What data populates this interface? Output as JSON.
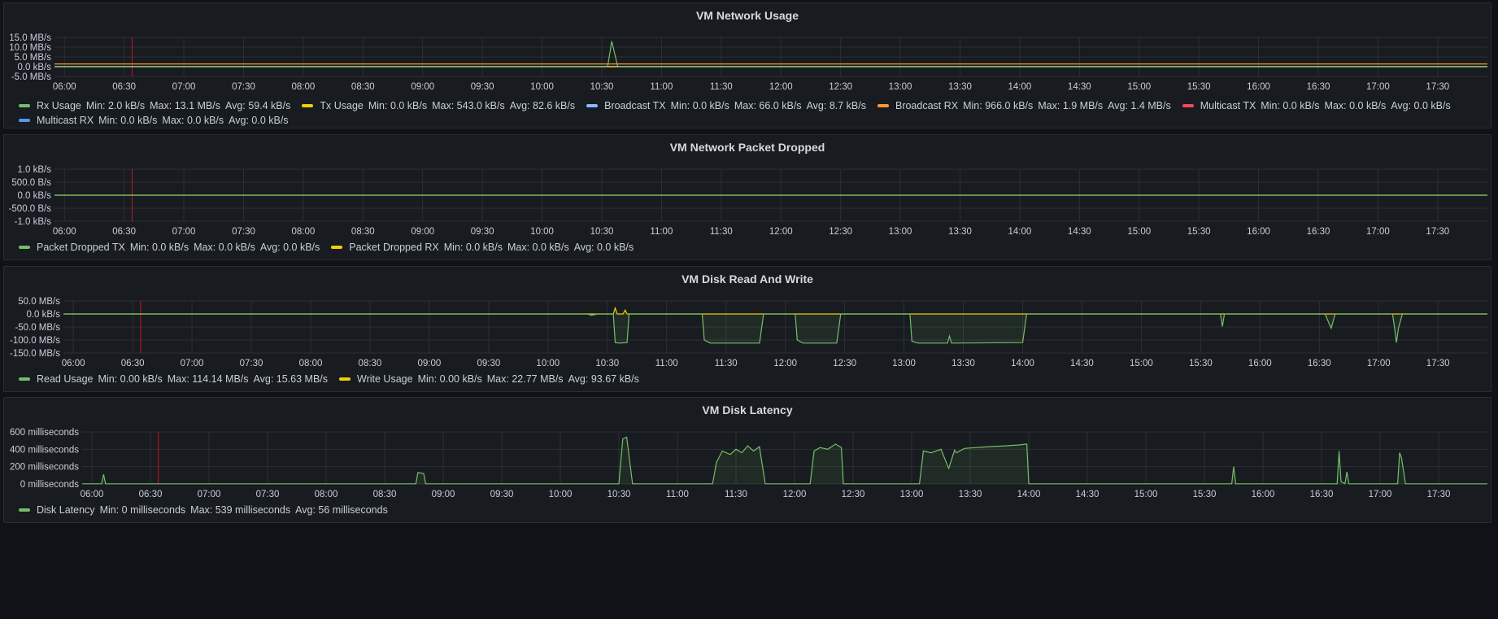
{
  "panels": [
    {
      "title": "VM Network Usage",
      "y_ticks": [
        "15.0 MB/s",
        "10.0 MB/s",
        "5.0 MB/s",
        "0.0 kB/s",
        "-5.0 MB/s"
      ],
      "x_ticks": [
        "06:00",
        "06:30",
        "07:00",
        "07:30",
        "08:00",
        "08:30",
        "09:00",
        "09:30",
        "10:00",
        "10:30",
        "11:00",
        "11:30",
        "12:00",
        "12:30",
        "13:00",
        "13:30",
        "14:00",
        "14:30",
        "15:00",
        "15:30",
        "16:00",
        "16:30",
        "17:00",
        "17:30"
      ],
      "legend": [
        {
          "name": "Rx Usage",
          "color": "#73bf69",
          "min": "Min: 2.0 kB/s",
          "max": "Max: 13.1 MB/s",
          "avg": "Avg: 59.4 kB/s"
        },
        {
          "name": "Tx Usage",
          "color": "#f2cc0c",
          "min": "Min: 0.0 kB/s",
          "max": "Max: 543.0 kB/s",
          "avg": "Avg: 82.6 kB/s"
        },
        {
          "name": "Broadcast TX",
          "color": "#8ab8ff",
          "min": "Min: 0.0 kB/s",
          "max": "Max: 66.0 kB/s",
          "avg": "Avg: 8.7 kB/s"
        },
        {
          "name": "Broadcast RX",
          "color": "#ff9830",
          "min": "Min: 966.0 kB/s",
          "max": "Max: 1.9 MB/s",
          "avg": "Avg: 1.4 MB/s"
        },
        {
          "name": "Multicast TX",
          "color": "#f2495c",
          "min": "Min: 0.0 kB/s",
          "max": "Max: 0.0 kB/s",
          "avg": "Avg: 0.0 kB/s"
        },
        {
          "name": "Multicast RX",
          "color": "#5794f2",
          "min": "Min: 0.0 kB/s",
          "max": "Max: 0.0 kB/s",
          "avg": "Avg: 0.0 kB/s"
        }
      ]
    },
    {
      "title": "VM Network Packet Dropped",
      "y_ticks": [
        "1.0 kB/s",
        "500.0 B/s",
        "0.0 kB/s",
        "-500.0 B/s",
        "-1.0 kB/s"
      ],
      "x_ticks": [
        "06:00",
        "06:30",
        "07:00",
        "07:30",
        "08:00",
        "08:30",
        "09:00",
        "09:30",
        "10:00",
        "10:30",
        "11:00",
        "11:30",
        "12:00",
        "12:30",
        "13:00",
        "13:30",
        "14:00",
        "14:30",
        "15:00",
        "15:30",
        "16:00",
        "16:30",
        "17:00",
        "17:30"
      ],
      "legend": [
        {
          "name": "Packet Dropped TX",
          "color": "#73bf69",
          "min": "Min: 0.0 kB/s",
          "max": "Max: 0.0 kB/s",
          "avg": "Avg: 0.0 kB/s"
        },
        {
          "name": "Packet Dropped RX",
          "color": "#f2cc0c",
          "min": "Min: 0.0 kB/s",
          "max": "Max: 0.0 kB/s",
          "avg": "Avg: 0.0 kB/s"
        }
      ]
    },
    {
      "title": "VM Disk Read And Write",
      "y_ticks": [
        "50.0 MB/s",
        "0.0 kB/s",
        "-50.0 MB/s",
        "-100.0 MB/s",
        "-150.0 MB/s"
      ],
      "x_ticks": [
        "06:00",
        "06:30",
        "07:00",
        "07:30",
        "08:00",
        "08:30",
        "09:00",
        "09:30",
        "10:00",
        "10:30",
        "11:00",
        "11:30",
        "12:00",
        "12:30",
        "13:00",
        "13:30",
        "14:00",
        "14:30",
        "15:00",
        "15:30",
        "16:00",
        "16:30",
        "17:00",
        "17:30"
      ],
      "legend": [
        {
          "name": "Read Usage",
          "color": "#73bf69",
          "min": "Min: 0.00 kB/s",
          "max": "Max: 114.14 MB/s",
          "avg": "Avg: 15.63 MB/s"
        },
        {
          "name": "Write Usage",
          "color": "#f2cc0c",
          "min": "Min: 0.00 kB/s",
          "max": "Max: 22.77 MB/s",
          "avg": "Avg: 93.67 kB/s"
        }
      ]
    },
    {
      "title": "VM Disk Latency",
      "y_ticks": [
        "600 milliseconds",
        "400 milliseconds",
        "200 milliseconds",
        "0 milliseconds"
      ],
      "x_ticks": [
        "06:00",
        "06:30",
        "07:00",
        "07:30",
        "08:00",
        "08:30",
        "09:00",
        "09:30",
        "10:00",
        "10:30",
        "11:00",
        "11:30",
        "12:00",
        "12:30",
        "13:00",
        "13:30",
        "14:00",
        "14:30",
        "15:00",
        "15:30",
        "16:00",
        "16:30",
        "17:00",
        "17:30"
      ],
      "legend": [
        {
          "name": "Disk Latency",
          "color": "#73bf69",
          "min": "Min: 0 milliseconds",
          "max": "Max: 539 milliseconds",
          "avg": "Avg: 56 milliseconds"
        }
      ]
    }
  ],
  "chart_data": [
    {
      "type": "line",
      "title": "VM Network Usage",
      "x_range": [
        "05:55",
        "17:55"
      ],
      "ylim": [
        -5,
        15
      ],
      "y_unit": "MB/s",
      "series": [
        {
          "name": "Rx Usage",
          "x": [
            "05:55",
            "10:30",
            "10:33",
            "10:35",
            "10:38",
            "17:55"
          ],
          "values": [
            0.05,
            0.05,
            0.3,
            13.1,
            0.05,
            0.05
          ]
        },
        {
          "name": "Tx Usage",
          "x": [
            "05:55",
            "17:55"
          ],
          "values": [
            0.08,
            0.08
          ]
        },
        {
          "name": "Broadcast TX",
          "x": [
            "05:55",
            "17:55"
          ],
          "values": [
            0.01,
            0.01
          ]
        },
        {
          "name": "Broadcast RX",
          "x": [
            "05:55",
            "17:55"
          ],
          "values": [
            1.4,
            1.4
          ]
        },
        {
          "name": "Multicast TX",
          "x": [
            "05:55",
            "17:55"
          ],
          "values": [
            0,
            0
          ]
        },
        {
          "name": "Multicast RX",
          "x": [
            "05:55",
            "17:55"
          ],
          "values": [
            0,
            0
          ]
        }
      ],
      "grid": true,
      "legend_position": "bottom"
    },
    {
      "type": "line",
      "title": "VM Network Packet Dropped",
      "x_range": [
        "05:55",
        "17:55"
      ],
      "ylim": [
        -1,
        1
      ],
      "y_unit": "kB/s",
      "series": [
        {
          "name": "Packet Dropped TX",
          "x": [
            "05:55",
            "17:55"
          ],
          "values": [
            0,
            0
          ]
        },
        {
          "name": "Packet Dropped RX",
          "x": [
            "05:55",
            "17:55"
          ],
          "values": [
            0,
            0
          ]
        }
      ],
      "grid": true,
      "legend_position": "bottom"
    },
    {
      "type": "area",
      "title": "VM Disk Read And Write",
      "x_range": [
        "05:55",
        "17:55"
      ],
      "ylim": [
        -150,
        50
      ],
      "y_unit": "MB/s",
      "series": [
        {
          "name": "Read Usage",
          "x": [
            "05:55",
            "10:20",
            "10:22",
            "10:25",
            "10:33",
            "10:34",
            "10:36",
            "10:40",
            "10:41",
            "11:18",
            "11:19",
            "11:22",
            "11:47",
            "11:49",
            "12:05",
            "12:06",
            "12:09",
            "12:26",
            "12:28",
            "13:03",
            "13:04",
            "13:07",
            "13:22",
            "13:23",
            "13:24",
            "14:00",
            "14:02",
            "15:40",
            "15:41",
            "15:42",
            "16:33",
            "16:34",
            "16:36",
            "16:38",
            "17:07",
            "17:08",
            "17:09",
            "17:10",
            "17:12",
            "17:55"
          ],
          "values": [
            0,
            0,
            -5,
            0,
            0,
            -110,
            -112,
            -110,
            0,
            0,
            -100,
            -112,
            -112,
            0,
            0,
            -100,
            -112,
            -112,
            0,
            0,
            -105,
            -112,
            -112,
            -85,
            -112,
            -110,
            0,
            0,
            -48,
            0,
            0,
            -20,
            -55,
            0,
            0,
            -50,
            -110,
            -55,
            0,
            0
          ]
        },
        {
          "name": "Write Usage",
          "x": [
            "05:55",
            "10:33",
            "10:34",
            "10:35",
            "10:38",
            "10:39",
            "10:40",
            "17:55"
          ],
          "values": [
            0,
            0,
            22.77,
            0,
            0,
            15,
            0,
            0
          ]
        }
      ],
      "grid": true,
      "legend_position": "bottom"
    },
    {
      "type": "area",
      "title": "VM Disk Latency",
      "x_range": [
        "05:55",
        "17:55"
      ],
      "ylim": [
        0,
        600
      ],
      "y_unit": "milliseconds",
      "series": [
        {
          "name": "Disk Latency",
          "x": [
            "05:55",
            "06:05",
            "06:06",
            "06:07",
            "08:46",
            "08:47",
            "08:50",
            "08:51",
            "10:30",
            "10:32",
            "10:34",
            "10:37",
            "10:40",
            "11:18",
            "11:20",
            "11:23",
            "11:27",
            "11:30",
            "11:33",
            "11:36",
            "11:39",
            "11:42",
            "11:45",
            "11:47",
            "12:08",
            "12:10",
            "12:13",
            "12:17",
            "12:21",
            "12:24",
            "12:25",
            "13:04",
            "13:06",
            "13:10",
            "13:15",
            "13:19",
            "13:22",
            "13:23",
            "13:27",
            "13:33",
            "13:40",
            "13:48",
            "13:55",
            "13:59",
            "14:00",
            "15:44",
            "15:45",
            "15:46",
            "16:38",
            "16:39",
            "16:40",
            "16:42",
            "16:43",
            "16:44",
            "17:09",
            "17:10",
            "17:11",
            "17:13",
            "17:55"
          ],
          "values": [
            2,
            2,
            110,
            2,
            2,
            130,
            120,
            2,
            2,
            520,
            539,
            2,
            2,
            2,
            250,
            380,
            340,
            400,
            360,
            440,
            380,
            430,
            2,
            2,
            2,
            380,
            420,
            400,
            460,
            420,
            2,
            2,
            380,
            360,
            400,
            180,
            390,
            360,
            410,
            420,
            430,
            440,
            450,
            460,
            2,
            2,
            200,
            2,
            2,
            380,
            30,
            2,
            140,
            2,
            2,
            360,
            300,
            2,
            2
          ]
        }
      ],
      "grid": true,
      "legend_position": "bottom"
    }
  ]
}
